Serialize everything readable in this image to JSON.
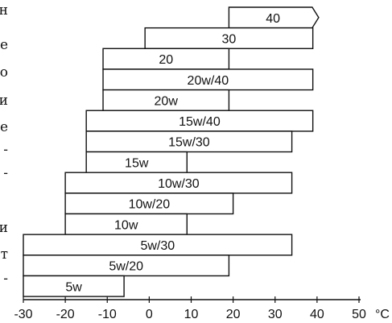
{
  "side_text": [
    "н",
    "е",
    "о",
    "и",
    "е",
    "-",
    "-",
    "и",
    "т",
    "-"
  ],
  "chart_data": {
    "type": "range-bar",
    "title": "",
    "xlabel": "",
    "ylabel": "",
    "x_unit": "°C",
    "x_ticks": [
      -30,
      -20,
      -10,
      0,
      10,
      20,
      30,
      40,
      50
    ],
    "xlim": [
      -30,
      50
    ],
    "bars": [
      {
        "label": "40",
        "min": 19,
        "max": 40,
        "arrow": true
      },
      {
        "label": "30",
        "min": -1,
        "max": 39
      },
      {
        "label": "20",
        "min": -11,
        "max": 19
      },
      {
        "label": "20w/40",
        "min": -11,
        "max": 39
      },
      {
        "label": "20w",
        "min": -11,
        "max": 19
      },
      {
        "label": "15w/40",
        "min": -15,
        "max": 39
      },
      {
        "label": "15w/30",
        "min": -15,
        "max": 34
      },
      {
        "label": "15w",
        "min": -15,
        "max": 9
      },
      {
        "label": "10w/30",
        "min": -20,
        "max": 34
      },
      {
        "label": "10w/20",
        "min": -20,
        "max": 20
      },
      {
        "label": "10w",
        "min": -20,
        "max": 9
      },
      {
        "label": "5w/30",
        "min": -30,
        "max": 34
      },
      {
        "label": "5w/20",
        "min": -30,
        "max": 19
      },
      {
        "label": "5w",
        "min": -30,
        "max": -6
      }
    ]
  }
}
